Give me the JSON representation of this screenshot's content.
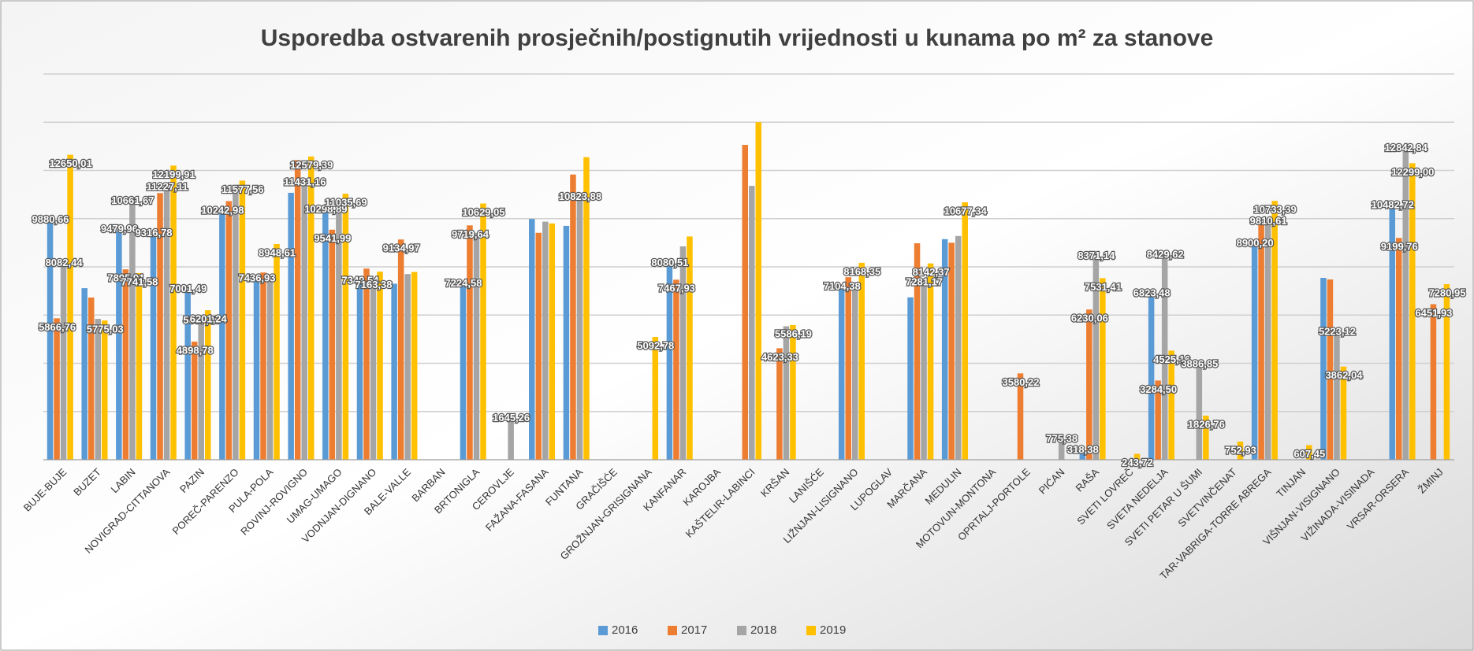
{
  "chart_data": {
    "type": "bar",
    "title": "Usporedba ostvarenih prosječnih/postignutih vrijednosti u kunama po m² za stanove",
    "categories": [
      "BUJE-BUJE",
      "BUZET",
      "LABIN",
      "NOVIGRAD-CITTANOVA",
      "PAZIN",
      "POREČ-PARENZO",
      "PULA-POLA",
      "ROVINJ-ROVIGNO",
      "UMAG-UMAGO",
      "VODNJAN-DIGNANO",
      "BALE-VALLE",
      "BARBAN",
      "BRTONIGLA",
      "CEROVLJE",
      "FAŽANA-FASANA",
      "FUNTANA",
      "GRAČIŠĆE",
      "GROŽNJAN-GRISIGNANA",
      "KANFANAR",
      "KAROJBA",
      "KAŠTELIR-LABINCI",
      "KRŠAN",
      "LANIŠĆE",
      "LIŽNJAN-LISIGNANO",
      "LUPOGLAV",
      "MARČANA",
      "MEDULIN",
      "MOTOVUN-MONTONA",
      "OPRTALJ-PORTOLE",
      "PIĆAN",
      "RAŠA",
      "SVETI LOVREČ",
      "SVETA NEDELJA",
      "SVETI PETAR U ŠUMI",
      "SVETVINČENAT",
      "TAR-VABRIGA-TORRE ABREGA",
      "TINJAN",
      "VIŠNJAN-VISIGNANO",
      "VIŽINADA-VISINADA",
      "VRSAR-ORSERA",
      "ŽMINJ"
    ],
    "series": [
      {
        "name": "2016",
        "color": "#5b9bd5",
        "values": [
          9880.66,
          7115,
          9479.96,
          9316.78,
          7001.49,
          10242.98,
          7436.93,
          11072,
          10298.89,
          7349.54,
          7300,
          null,
          7224.58,
          null,
          9986,
          9700,
          null,
          null,
          8080.51,
          null,
          null,
          null,
          null,
          7104.38,
          null,
          6735.67,
          9150,
          null,
          null,
          null,
          318.38,
          null,
          6823.48,
          null,
          null,
          8900.2,
          null,
          7542,
          null,
          10482.72,
          null
        ],
        "value_labels": [
          "9880,66",
          null,
          "9479,96",
          "9316,78",
          "7001,49",
          "10242,98",
          "7436,93",
          null,
          "10298,89",
          "7349,54",
          null,
          null,
          "7224,58",
          null,
          null,
          null,
          null,
          null,
          "8080,51",
          null,
          null,
          null,
          null,
          "7104,38",
          null,
          null,
          null,
          null,
          null,
          null,
          "318,38",
          null,
          "6823,48",
          null,
          null,
          "8900,20",
          null,
          null,
          null,
          "10482,72",
          null
        ]
      },
      {
        "name": "2017",
        "color": "#ed7d31",
        "values": [
          5866.76,
          6728,
          7895.91,
          11060,
          4898.78,
          10727,
          7766,
          12427,
          9541.99,
          7929,
          9134.97,
          null,
          9719.64,
          null,
          9411.87,
          11830,
          null,
          null,
          7467.93,
          null,
          13060,
          4623.33,
          null,
          7569.83,
          null,
          8978,
          9000,
          null,
          3580.22,
          null,
          6230.06,
          null,
          3284.5,
          null,
          null,
          9850,
          null,
          7477.91,
          null,
          9199.76,
          6451.93
        ],
        "value_labels": [
          "5866,76",
          null,
          "7895,91",
          null,
          "4898,78",
          null,
          null,
          null,
          "9541,99",
          null,
          "9134,97",
          null,
          "9719,64",
          null,
          null,
          null,
          null,
          null,
          "7467,93",
          null,
          null,
          "4623,33",
          null,
          null,
          null,
          null,
          null,
          null,
          "3580,22",
          null,
          "6230,06",
          null,
          "3284,50",
          null,
          null,
          null,
          null,
          null,
          null,
          "9199,76",
          "6451,93"
        ]
      },
      {
        "name": "2018",
        "color": "#a5a5a5",
        "values": [
          8082.44,
          5841.8,
          10661.67,
          11227.11,
          5687.95,
          11042.94,
          7508,
          11431.16,
          10504,
          7163.38,
          7700,
          null,
          9411.43,
          1645.26,
          9874,
          10823.88,
          null,
          null,
          8850,
          null,
          11360,
          5535,
          null,
          7300,
          null,
          7281.17,
          9280,
          null,
          null,
          775.38,
          8371.14,
          null,
          8429.62,
          3886.85,
          null,
          9810.61,
          null,
          5223.12,
          null,
          12842.84,
          null
        ],
        "value_labels": [
          "8082,44",
          null,
          "10661,67",
          "11227,11",
          "5687,95",
          null,
          null,
          "11431,16",
          null,
          "7163,38",
          null,
          null,
          null,
          "1645,26",
          null,
          "10823,88",
          null,
          null,
          null,
          null,
          null,
          null,
          null,
          null,
          null,
          "7281,17",
          null,
          null,
          null,
          "775,38",
          "8371,14",
          null,
          "8429,62",
          "3886,85",
          null,
          "9810,61",
          null,
          "5223,12",
          null,
          "12842,84",
          null
        ]
      },
      {
        "name": "2019",
        "color": "#ffc000",
        "values": [
          12650.01,
          5775.03,
          7741.58,
          12199.91,
          6201.24,
          11577.56,
          8948.61,
          12579.39,
          11035.69,
          7800,
          7787.09,
          null,
          10629.05,
          null,
          9800,
          12550,
          null,
          5092.78,
          9260,
          null,
          14000,
          5586.19,
          null,
          8168.35,
          null,
          8142.37,
          10677.34,
          null,
          null,
          null,
          7531.41,
          243.72,
          4525.16,
          1826.76,
          752.93,
          10733.39,
          607.45,
          3862.04,
          null,
          12299,
          7280.95
        ],
        "value_labels": [
          "12650,01",
          "5775,03",
          "7741,58",
          "12199,91",
          "6201,24",
          "11577,56",
          "8948,61",
          "12579,39",
          "11035,69",
          null,
          null,
          null,
          "10629,05",
          null,
          null,
          null,
          null,
          "5092,78",
          null,
          null,
          null,
          "5586,19",
          null,
          "8168,35",
          null,
          "8142,37",
          "10677,34",
          null,
          null,
          null,
          "7531,41",
          "243,72",
          "4525,16",
          "1826,76",
          "752,93",
          "10733,39",
          "607,45",
          "3862,04",
          null,
          "12299,00",
          "7280,95"
        ]
      }
    ],
    "ylim": [
      0,
      16000
    ],
    "yticks": [
      0,
      2000,
      4000,
      6000,
      8000,
      10000,
      12000,
      14000,
      16000
    ],
    "grid": true,
    "legend": "bottom"
  }
}
